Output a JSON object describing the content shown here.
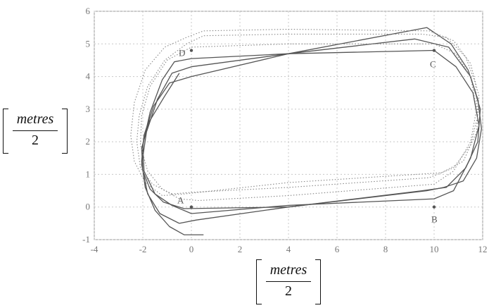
{
  "chart_data": {
    "type": "line",
    "xlim": [
      -4,
      12
    ],
    "ylim": [
      -1,
      6
    ],
    "xticks": [
      "-4",
      "-2",
      "0",
      "2",
      "4",
      "6",
      "8",
      "10",
      "12"
    ],
    "yticks": [
      "-1",
      "0",
      "1",
      "2",
      "3",
      "4",
      "5",
      "6"
    ],
    "grid": true,
    "xlabel": {
      "numerator": "metres",
      "denominator": "2"
    },
    "ylabel": {
      "numerator": "metres",
      "denominator": "2"
    },
    "points": [
      {
        "label": "A",
        "x": 0,
        "y": 0
      },
      {
        "label": "B",
        "x": 10,
        "y": 0
      },
      {
        "label": "C",
        "x": 10,
        "y": 4.8
      },
      {
        "label": "D",
        "x": 0,
        "y": 4.8
      }
    ],
    "series": [
      {
        "style": "solid",
        "color": "#555555",
        "x": [
          0.5,
          -0.3,
          -0.9,
          -1.5,
          -1.9,
          -2.05,
          -1.95,
          -1.55,
          -0.9,
          0,
          4,
          9.7,
          10.7,
          11.4,
          11.8,
          11.95,
          11.75,
          11.2,
          10.4,
          9.7,
          4,
          -0.3,
          -1.15,
          -1.7,
          -2.0,
          -2.05,
          -1.75,
          -1.1,
          -0.5
        ],
        "y": [
          -0.85,
          -0.85,
          -0.6,
          -0.1,
          0.6,
          1.4,
          2.2,
          3.1,
          3.8,
          4.0,
          4.7,
          5.5,
          5.0,
          4.2,
          3.3,
          2.4,
          1.5,
          0.8,
          0.6,
          0.5,
          0.0,
          -0.05,
          0.15,
          0.55,
          1.1,
          1.8,
          2.6,
          3.4,
          4.1
        ]
      },
      {
        "style": "solid",
        "color": "#555555",
        "x": [
          -0.5,
          -1.3,
          -1.8,
          -2.05,
          -1.85,
          -1.4,
          -0.8,
          0,
          4,
          9.2,
          10.6,
          11.5,
          11.9,
          11.8,
          11.3,
          10.5,
          9.5,
          4,
          0.2,
          -0.5
        ],
        "y": [
          -0.5,
          -0.2,
          0.4,
          1.3,
          2.3,
          3.3,
          4.1,
          4.3,
          4.7,
          5.15,
          4.9,
          4.0,
          3.0,
          2.0,
          1.2,
          0.6,
          0.5,
          0.0,
          -0.4,
          -0.5
        ]
      },
      {
        "style": "solid",
        "color": "#555555",
        "x": [
          -0.8,
          -1.5,
          -1.95,
          -2.0,
          -1.7,
          -1.2,
          -0.7,
          0,
          4,
          10,
          10.9,
          11.6,
          11.85,
          11.5,
          10.8,
          10,
          4,
          0,
          -0.8
        ],
        "y": [
          0.05,
          0.4,
          1.1,
          1.9,
          2.9,
          3.9,
          4.45,
          4.55,
          4.7,
          4.8,
          4.3,
          3.5,
          2.5,
          1.5,
          0.5,
          0.25,
          0.05,
          -0.2,
          0.05
        ]
      },
      {
        "style": "dotted",
        "color": "#888888",
        "x": [
          -0.8,
          -1.6,
          -2.1,
          -2.25,
          -2.15,
          -1.8,
          -1.1,
          -0.2,
          0.5,
          4,
          9.5,
          10.5,
          11.3,
          11.7,
          11.8,
          11.5,
          10.8,
          9.8,
          4,
          0,
          -0.8
        ],
        "y": [
          0.4,
          0.7,
          1.2,
          2.0,
          2.8,
          3.7,
          4.5,
          5.0,
          5.25,
          5.3,
          5.3,
          5.2,
          4.6,
          3.8,
          2.8,
          1.9,
          1.2,
          0.9,
          0.6,
          0.45,
          0.4
        ]
      },
      {
        "style": "dotted",
        "color": "#888888",
        "x": [
          -1.2,
          -1.9,
          -2.35,
          -2.5,
          -2.35,
          -1.9,
          -1.1,
          -0.2,
          0.5,
          4,
          9.8,
          10.8,
          11.5,
          11.85,
          11.75,
          11.2,
          10.3,
          4,
          -0.3,
          -1.2
        ],
        "y": [
          0.35,
          0.75,
          1.4,
          2.2,
          3.2,
          4.2,
          4.9,
          5.2,
          5.4,
          5.45,
          5.4,
          5.1,
          4.4,
          3.4,
          2.3,
          1.4,
          1.05,
          0.75,
          0.4,
          0.35
        ]
      },
      {
        "style": "dotted",
        "color": "#888888",
        "x": [
          -0.5,
          -1.2,
          -1.8,
          -2.1,
          -2.05,
          -1.7,
          -1.0,
          0,
          4,
          10,
          10.9,
          11.5,
          11.75,
          11.5,
          10.8,
          10,
          4,
          0.3,
          -0.5
        ],
        "y": [
          0.25,
          0.55,
          1.1,
          1.9,
          2.8,
          3.7,
          4.5,
          4.9,
          5.0,
          5.0,
          4.7,
          4.0,
          3.0,
          2.0,
          1.1,
          0.7,
          0.35,
          0.2,
          0.25
        ]
      }
    ]
  }
}
